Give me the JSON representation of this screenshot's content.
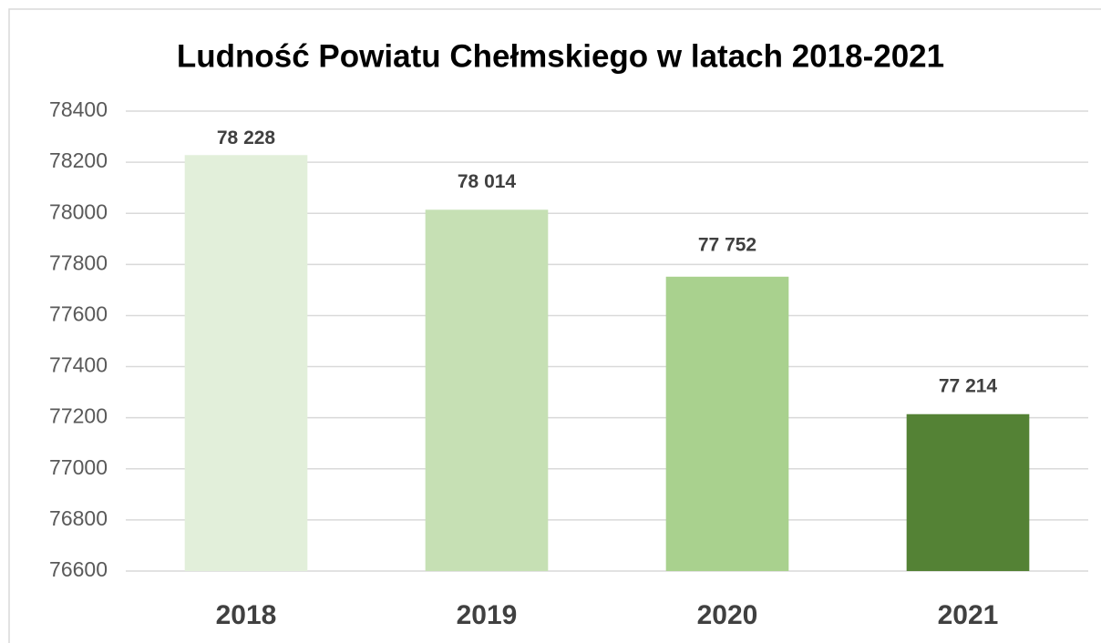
{
  "chart_data": {
    "type": "bar",
    "title": "Ludność Powiatu Chełmskiego w latach 2018-2021",
    "categories": [
      "2018",
      "2019",
      "2020",
      "2021"
    ],
    "values": [
      78228,
      78014,
      77752,
      77214
    ],
    "value_labels": [
      "78 228",
      "78 014",
      "77 752",
      "77 214"
    ],
    "colors": [
      "#e2efda",
      "#c6e0b4",
      "#a9d18e",
      "#548235"
    ],
    "ylim": [
      76600,
      78400
    ],
    "yticks": [
      76600,
      76800,
      77000,
      77200,
      77400,
      77600,
      77800,
      78000,
      78200,
      78400
    ],
    "grid": true
  }
}
